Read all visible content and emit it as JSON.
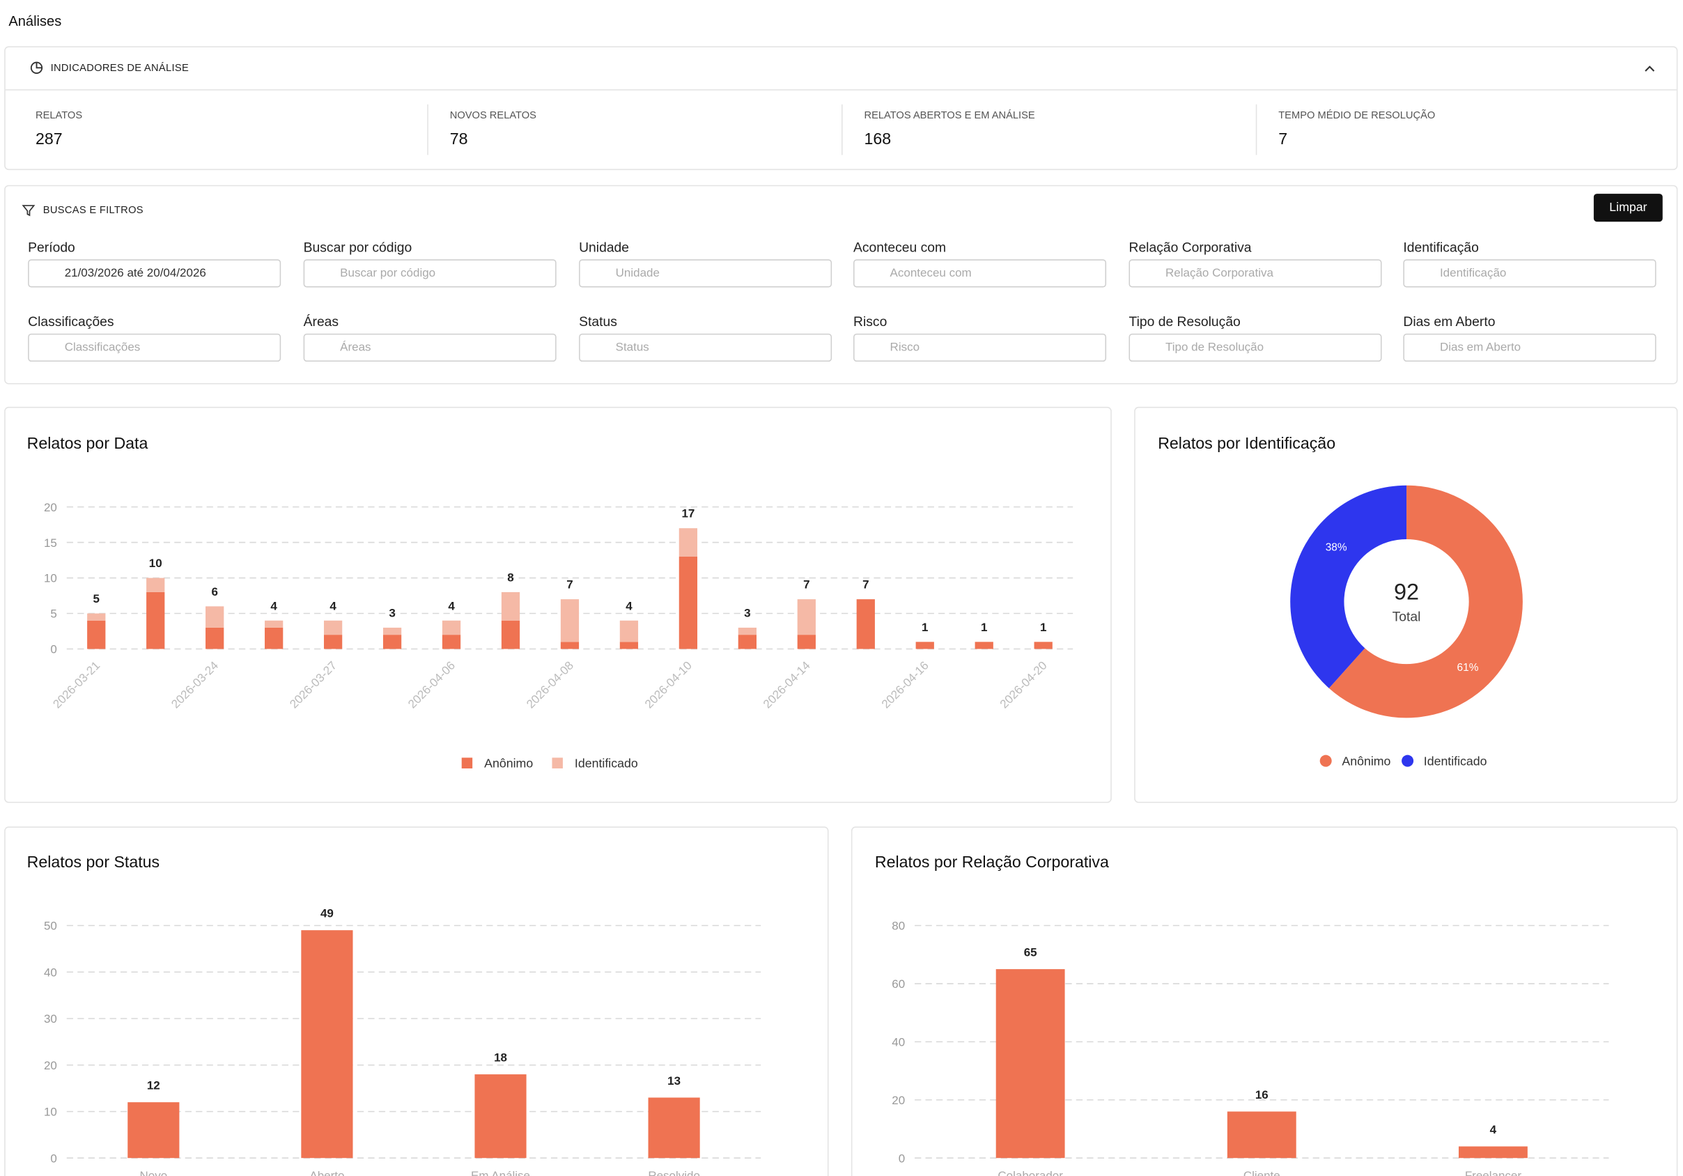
{
  "header": {
    "title": "Análises"
  },
  "indicators": {
    "title": "INDICADORES DE ANÁLISE",
    "items": [
      {
        "label": "RELATOS",
        "value": 287
      },
      {
        "label": "NOVOS RELATOS",
        "value": 78
      },
      {
        "label": "RELATOS ABERTOS E EM ANÁLISE",
        "value": 168
      },
      {
        "label": "TEMPO MÉDIO DE RESOLUÇÃO",
        "value": 7
      }
    ]
  },
  "filters": {
    "title": "BUSCAS E FILTROS",
    "clear_button": "Limpar",
    "fields": [
      {
        "label": "Período",
        "value": "21/03/2026 até 20/04/2026"
      },
      {
        "label": "Buscar por código",
        "placeholder": "Buscar por código"
      },
      {
        "label": "Unidade",
        "placeholder": "Unidade"
      },
      {
        "label": "Aconteceu com",
        "placeholder": "Aconteceu com"
      },
      {
        "label": "Relação Corporativa",
        "placeholder": "Relação Corporativa"
      },
      {
        "label": "Identificação",
        "placeholder": "Identificação"
      },
      {
        "label": "Classificações",
        "placeholder": "Classificações"
      },
      {
        "label": "Áreas",
        "placeholder": "Áreas"
      },
      {
        "label": "Status",
        "placeholder": "Status"
      },
      {
        "label": "Risco",
        "placeholder": "Risco"
      },
      {
        "label": "Tipo de Resolução",
        "placeholder": "Tipo de Resolução"
      },
      {
        "label": "Dias em Aberto",
        "placeholder": "Dias em Aberto"
      }
    ]
  },
  "chart_data": [
    {
      "type": "stacked-bar",
      "title": "Relatos por Data",
      "categories": [
        "2026-03-21",
        null,
        "2026-03-24",
        null,
        "2026-03-27",
        null,
        "2026-04-06",
        null,
        "2026-04-08",
        null,
        "2026-04-10",
        null,
        "2026-04-14",
        null,
        "2026-04-16",
        null,
        "2026-04-20"
      ],
      "series": [
        {
          "name": "Anônimo",
          "color": "#ef7352",
          "values": [
            4,
            8,
            3,
            3,
            2,
            2,
            2,
            4,
            1,
            1,
            13,
            2,
            2,
            7,
            1,
            1,
            1
          ]
        },
        {
          "name": "Identificado",
          "color": "#f5b9a6",
          "values": [
            1,
            2,
            3,
            1,
            2,
            1,
            2,
            4,
            6,
            3,
            4,
            1,
            5,
            0,
            0,
            0,
            0
          ]
        }
      ],
      "totals": [
        5,
        10,
        6,
        4,
        4,
        3,
        4,
        8,
        7,
        4,
        17,
        3,
        7,
        7,
        1,
        1,
        1
      ],
      "ylim": [
        0,
        20
      ],
      "yticks": [
        0,
        5,
        10,
        15,
        20
      ],
      "grid": true
    },
    {
      "type": "donut",
      "title": "Relatos por Identificação",
      "categories": [
        "Anônimo",
        "Identificado"
      ],
      "values": [
        61,
        38
      ],
      "value_labels": [
        "61%",
        "38%"
      ],
      "colors": [
        "#ef7352",
        "#2e36ee"
      ],
      "center_value": 92,
      "center_label": "Total"
    },
    {
      "type": "bar",
      "title": "Relatos por Status",
      "categories": [
        "Novo",
        "Aberto",
        "Em Análise",
        "Resolvido"
      ],
      "values": [
        12,
        49,
        18,
        13
      ],
      "color": "#ef7352",
      "ylim": [
        0,
        50
      ],
      "yticks": [
        0,
        10,
        20,
        30,
        40,
        50
      ],
      "grid": true
    },
    {
      "type": "bar",
      "title": "Relatos por Relação Corporativa",
      "categories": [
        "Colaborador",
        "Cliente",
        "Freelancer"
      ],
      "values": [
        65,
        16,
        4
      ],
      "color": "#ef7352",
      "ylim": [
        0,
        80
      ],
      "yticks": [
        0,
        20,
        40,
        60,
        80
      ],
      "grid": true
    }
  ]
}
